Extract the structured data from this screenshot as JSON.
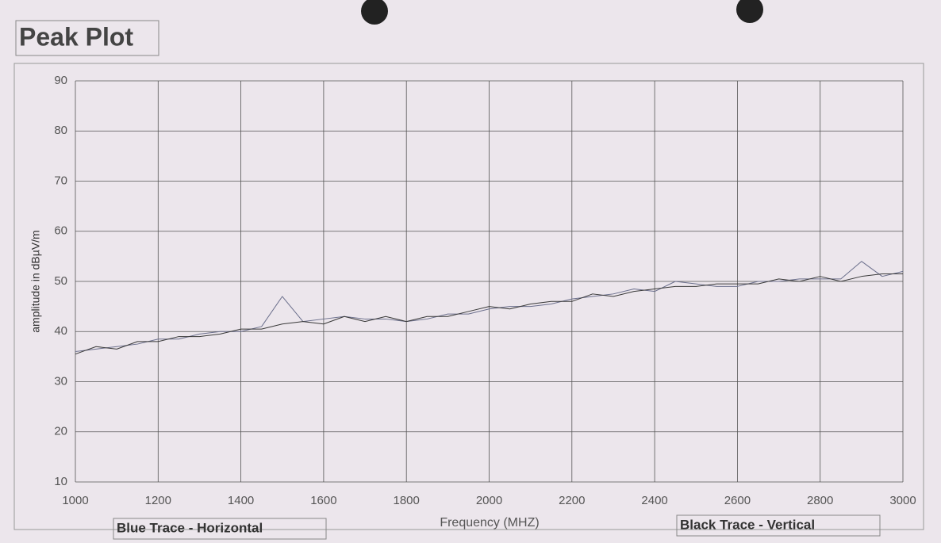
{
  "chart_data": {
    "type": "line",
    "title": "Peak Plot",
    "x_label": "Frequency (MHZ)",
    "y_label": "amplitude in dBµV/m",
    "x": [
      1000,
      1050,
      1100,
      1150,
      1200,
      1250,
      1300,
      1350,
      1400,
      1450,
      1500,
      1550,
      1600,
      1650,
      1700,
      1750,
      1800,
      1850,
      1900,
      1950,
      2000,
      2050,
      2100,
      2150,
      2200,
      2250,
      2300,
      2350,
      2400,
      2450,
      2500,
      2550,
      2600,
      2650,
      2700,
      2750,
      2800,
      2850,
      2900,
      2950,
      3000
    ],
    "series": [
      {
        "name": "Blue Trace - Horizontal",
        "color": "#6b6f8c",
        "values": [
          36,
          36.5,
          37,
          37.5,
          38.5,
          38.5,
          39.5,
          40,
          40,
          41,
          47,
          42,
          42.5,
          43,
          42.5,
          42.5,
          42,
          42.5,
          43.5,
          43.5,
          44.5,
          45,
          45,
          45.5,
          46.5,
          47,
          47.5,
          48.5,
          48,
          50,
          49.5,
          49,
          49,
          50,
          50,
          50.5,
          50.5,
          50.5,
          54,
          51,
          52
        ]
      },
      {
        "name": "Black Trace - Vertical",
        "color": "#3a3a3a",
        "values": [
          35.5,
          37,
          36.5,
          38,
          38,
          39,
          39,
          39.5,
          40.5,
          40.5,
          41.5,
          42,
          41.5,
          43,
          42,
          43,
          42,
          43,
          43,
          44,
          45,
          44.5,
          45.5,
          46,
          46,
          47.5,
          47,
          48,
          48.5,
          49,
          49,
          49.5,
          49.5,
          49.5,
          50.5,
          50,
          51,
          50,
          51,
          51.5,
          51.5
        ]
      }
    ],
    "xlim": [
      1000,
      3000
    ],
    "xticks": [
      1000,
      1200,
      1400,
      1600,
      1800,
      2000,
      2200,
      2400,
      2600,
      2800,
      3000
    ],
    "ylim": [
      10,
      90
    ],
    "yticks": [
      10,
      20,
      30,
      40,
      50,
      60,
      70,
      80,
      90
    ],
    "grid": true
  }
}
